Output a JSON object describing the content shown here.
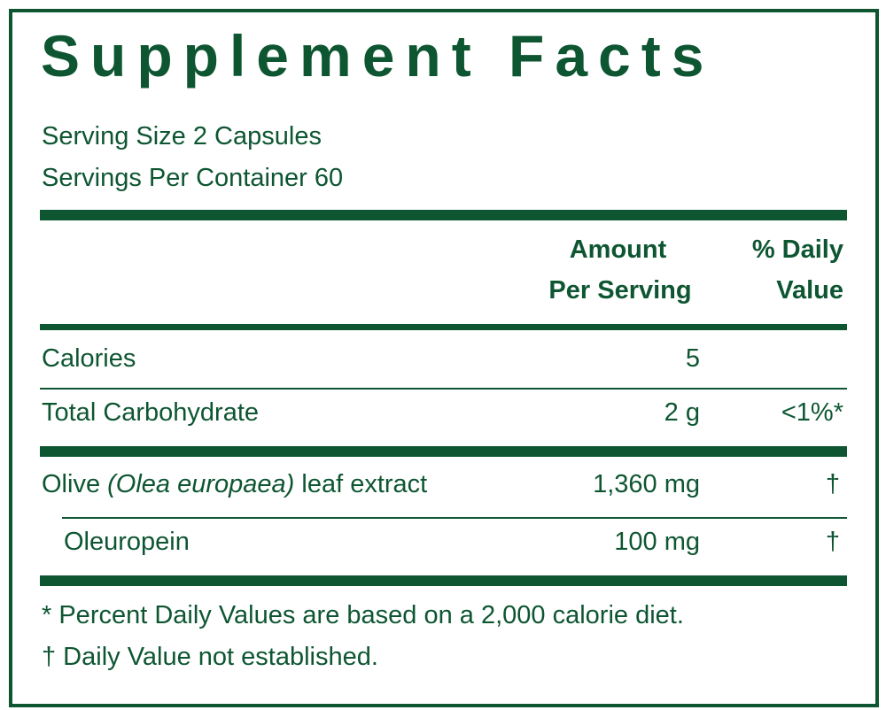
{
  "title": "Supplement Facts",
  "serving_size": "Serving Size 2 Capsules",
  "servings_per_container": "Servings Per Container 60",
  "header": {
    "amount": [
      "Amount",
      "Per Serving"
    ],
    "daily_value": [
      "% Daily",
      "Value"
    ]
  },
  "rows": [
    {
      "name": "Calories",
      "amount": "5"
    },
    {
      "name": "Total Carbohydrate",
      "amount": "2 g",
      "daily_value": "<1%*"
    },
    {
      "name": [
        "Olive ",
        "(Olea europaea)",
        " leaf extract"
      ],
      "amount": "1,360 mg",
      "daily_value": "†"
    },
    {
      "name": "Oleuropein",
      "amount": "100 mg",
      "daily_value": "†"
    }
  ],
  "footnotes": [
    "* Percent Daily Values are based on a 2,000 calorie diet.",
    "† Daily Value not established."
  ]
}
